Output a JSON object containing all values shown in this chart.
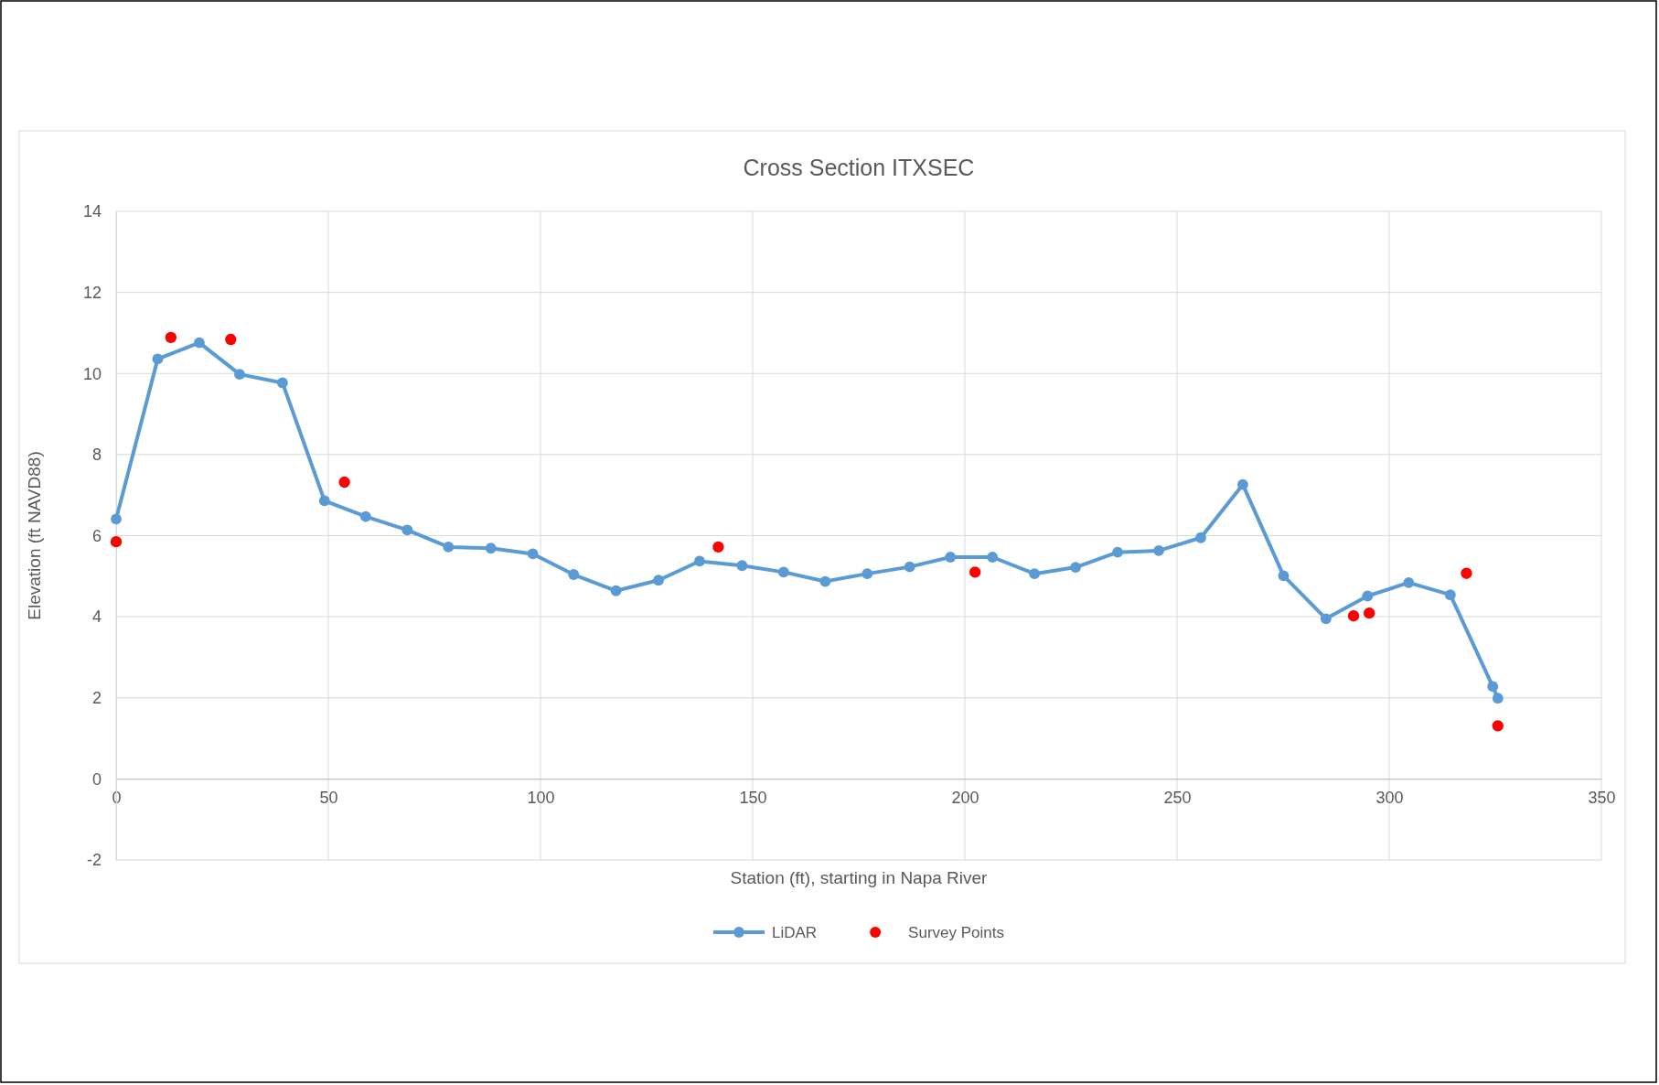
{
  "chart_data": {
    "type": "line",
    "title": "Cross Section ITXSEC",
    "xlabel": "Station (ft), starting in Napa River",
    "ylabel": "Elevation (ft NAVD88)",
    "xlim": [
      0,
      350
    ],
    "xticks": [
      0,
      50,
      100,
      150,
      200,
      250,
      300,
      350
    ],
    "ylim": [
      -2,
      14
    ],
    "yticks": [
      -2,
      0,
      2,
      4,
      6,
      8,
      10,
      12,
      14
    ],
    "grid": true,
    "legend": "bottom",
    "series": [
      {
        "name": "LiDAR",
        "color": "#5b9bd5",
        "marker": "circle",
        "line_style": "solid",
        "x": [
          0,
          9.8,
          19.6,
          29.1,
          39.2,
          49.1,
          58.8,
          68.6,
          78.3,
          88.3,
          98.2,
          107.8,
          117.8,
          127.8,
          137.5,
          147.5,
          157.3,
          167.1,
          177.0,
          187.0,
          196.6,
          206.5,
          216.4,
          226.1,
          236.0,
          245.7,
          255.6,
          265.5,
          275.1,
          285.1,
          294.9,
          304.6,
          314.4,
          324.4,
          325.6
        ],
        "values": [
          6.41,
          10.36,
          10.76,
          9.98,
          9.77,
          6.86,
          6.47,
          6.14,
          5.72,
          5.69,
          5.55,
          5.04,
          4.64,
          4.9,
          5.37,
          5.26,
          5.1,
          4.87,
          5.06,
          5.23,
          5.47,
          5.47,
          5.06,
          5.22,
          5.59,
          5.63,
          5.95,
          7.26,
          5.01,
          3.95,
          4.51,
          4.84,
          4.54,
          2.28,
          1.99
        ]
      },
      {
        "name": "Survey Points",
        "type": "scatter",
        "color": "#ff0000",
        "marker": "circle",
        "x": [
          0,
          12.9,
          27.0,
          53.8,
          141.9,
          202.4,
          291.6,
          295.3,
          318.2,
          325.6
        ],
        "values": [
          5.85,
          10.89,
          10.84,
          7.32,
          5.72,
          5.1,
          4.02,
          4.09,
          5.07,
          1.31
        ]
      }
    ]
  }
}
